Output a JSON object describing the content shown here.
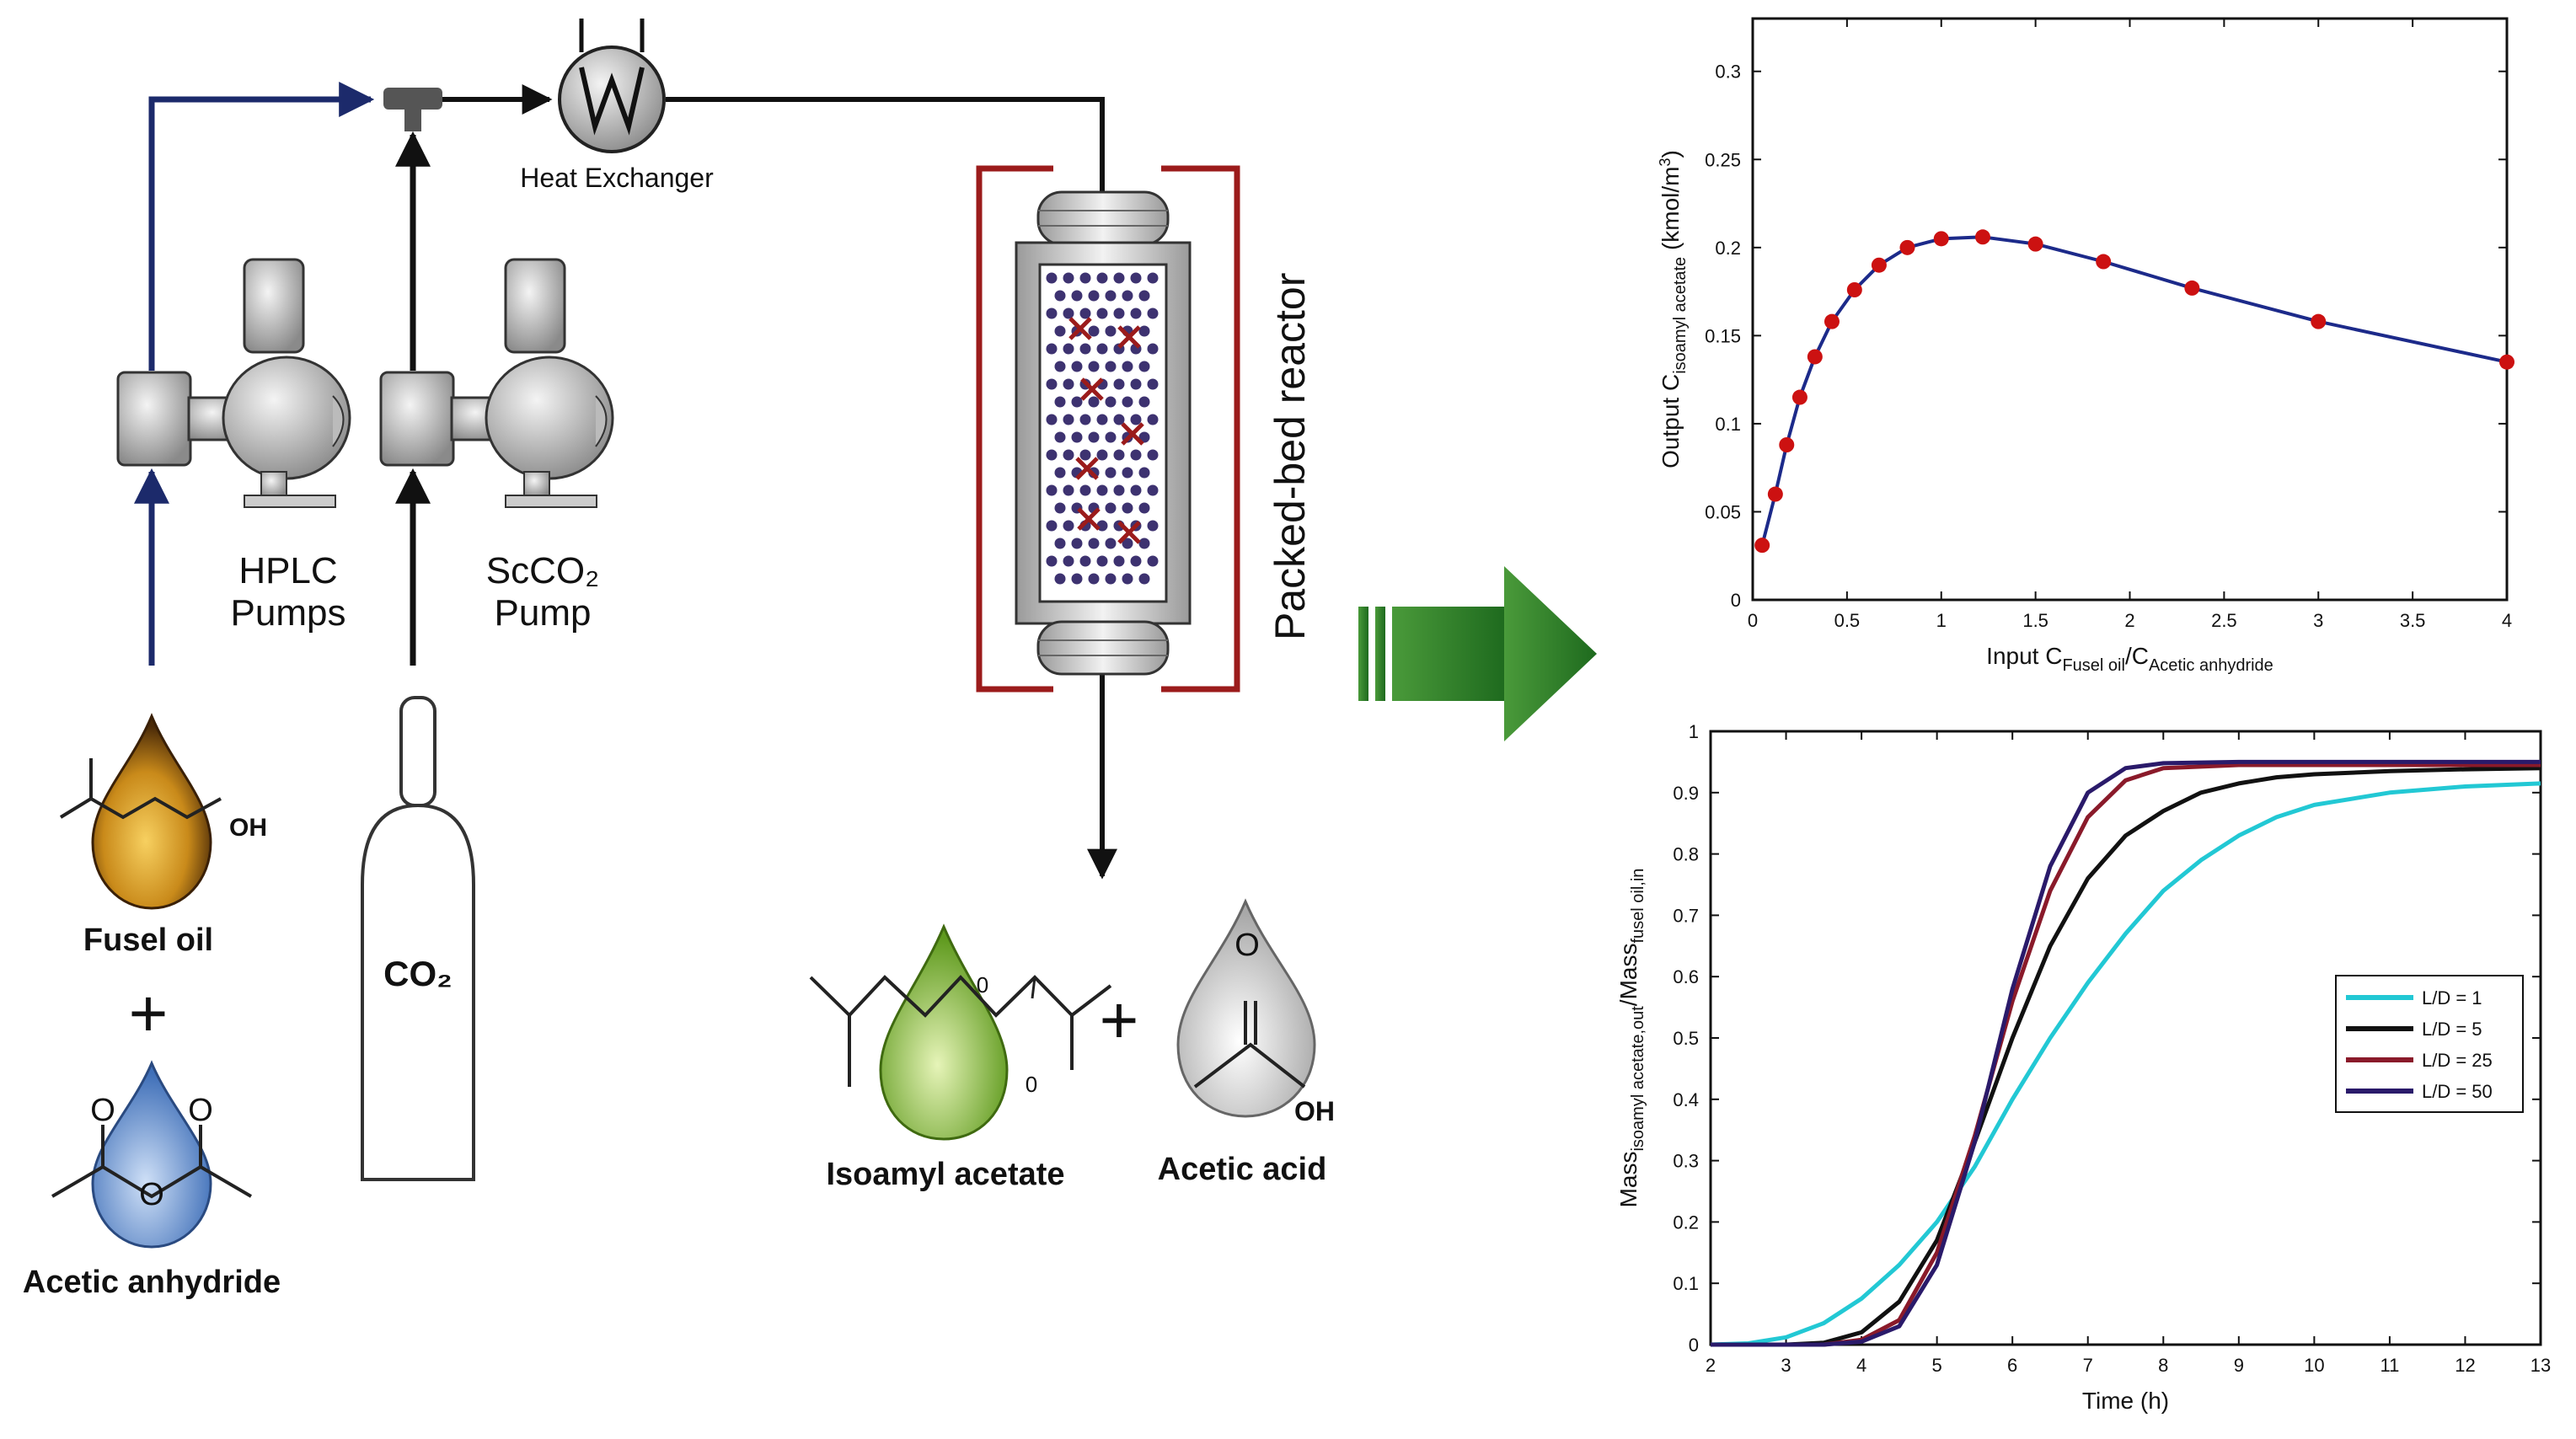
{
  "diagram": {
    "labels": {
      "heat_exchanger": "Heat Exchanger",
      "hplc_line1": "HPLC",
      "hplc_line2": "Pumps",
      "scco2_line1": "ScCO₂",
      "scco2_line2": "Pump",
      "reactor": "Packed-bed reactor",
      "fusel_oil": "Fusel oil",
      "acetic_anhydride": "Acetic anhydride",
      "co2": "CO₂",
      "isoamyl_acetate": "Isoamyl acetate",
      "acetic_acid": "Acetic acid",
      "plus": "+",
      "oh": "OH",
      "o": "O",
      "o_small": "0"
    },
    "colors": {
      "feed_line": "#1c2a6b",
      "line": "#111111",
      "reactor_bracket": "#9b1b1b",
      "bead": "#3d3270",
      "catalyst_cross": "#9b1b1b",
      "arrow": "#2e7d2e",
      "fusel_drop": "#c98a1a",
      "anhydride_drop": "#5a86c8",
      "isoamyl_drop": "#8fbf3a",
      "acid_drop": "#d6d6d6"
    }
  },
  "chart_data": [
    {
      "type": "line",
      "title": "",
      "xlabel_main": "Input C",
      "xlabel_sub1": "Fusel oil",
      "xlabel_sep": "/C",
      "xlabel_sub2": "Acetic anhydride",
      "ylabel_main": "Output C",
      "ylabel_sub": "isoamyl acetate",
      "ylabel_unit": " (kmol/m",
      "ylabel_sup": "3",
      "ylabel_close": ")",
      "xlim": [
        0,
        4
      ],
      "ylim": [
        0,
        0.33
      ],
      "xticks": [
        0,
        0.5,
        1,
        1.5,
        2,
        2.5,
        3,
        3.5,
        4
      ],
      "xtick_labels": [
        "0",
        "0.5",
        "1",
        "1.5",
        "2",
        "2.5",
        "3",
        "3.5",
        "4"
      ],
      "yticks": [
        0,
        0.05,
        0.1,
        0.15,
        0.2,
        0.25,
        0.3
      ],
      "ytick_labels": [
        "0",
        "0.05",
        "0.1",
        "0.15",
        "0.2",
        "0.25",
        "0.3"
      ],
      "series": [
        {
          "color": "#1c2a8a",
          "marker_color": "#cc1111",
          "x": [
            0.05,
            0.12,
            0.18,
            0.25,
            0.33,
            0.42,
            0.54,
            0.67,
            0.82,
            1.0,
            1.22,
            1.5,
            1.86,
            2.33,
            3.0,
            4.0
          ],
          "y": [
            0.031,
            0.06,
            0.088,
            0.115,
            0.138,
            0.158,
            0.176,
            0.19,
            0.2,
            0.205,
            0.206,
            0.202,
            0.192,
            0.177,
            0.158,
            0.135
          ]
        }
      ]
    },
    {
      "type": "line",
      "title": "",
      "xlabel": "Time (h)",
      "ylabel_a": "Mass",
      "ylabel_a_sub": "isoamyl acetate,out",
      "ylabel_sep": "/Mass",
      "ylabel_b_sub": "fusel oil,in",
      "xlim": [
        2,
        13
      ],
      "ylim": [
        0,
        1
      ],
      "xticks": [
        2,
        3,
        4,
        5,
        6,
        7,
        8,
        9,
        10,
        11,
        12,
        13
      ],
      "xtick_labels": [
        "2",
        "3",
        "4",
        "5",
        "6",
        "7",
        "8",
        "9",
        "10",
        "11",
        "12",
        "13"
      ],
      "yticks": [
        0,
        0.1,
        0.2,
        0.3,
        0.4,
        0.5,
        0.6,
        0.7,
        0.8,
        0.9,
        1
      ],
      "ytick_labels": [
        "0",
        "0.1",
        "0.2",
        "0.3",
        "0.4",
        "0.5",
        "0.6",
        "0.7",
        "0.8",
        "0.9",
        "1"
      ],
      "legend_position": "center-right",
      "series": [
        {
          "name": "L/D = 1",
          "color": "#22c8d4",
          "x": [
            2,
            2.5,
            3,
            3.5,
            4,
            4.5,
            5,
            5.5,
            6,
            6.5,
            7,
            7.5,
            8,
            8.5,
            9,
            9.5,
            10,
            11,
            12,
            13
          ],
          "y": [
            0.0,
            0.002,
            0.012,
            0.035,
            0.075,
            0.13,
            0.2,
            0.29,
            0.4,
            0.5,
            0.59,
            0.67,
            0.74,
            0.79,
            0.83,
            0.86,
            0.88,
            0.9,
            0.91,
            0.915
          ]
        },
        {
          "name": "L/D = 5",
          "color": "#111111",
          "x": [
            2,
            3,
            3.5,
            4,
            4.5,
            5,
            5.5,
            6,
            6.5,
            7,
            7.5,
            8,
            8.5,
            9,
            9.5,
            10,
            11,
            12,
            13
          ],
          "y": [
            0.0,
            0.0,
            0.003,
            0.02,
            0.07,
            0.17,
            0.33,
            0.5,
            0.65,
            0.76,
            0.83,
            0.87,
            0.9,
            0.915,
            0.925,
            0.93,
            0.935,
            0.938,
            0.94
          ]
        },
        {
          "name": "L/D = 25",
          "color": "#8a1a2a",
          "x": [
            2,
            3.5,
            4,
            4.5,
            5,
            5.5,
            6,
            6.5,
            7,
            7.5,
            8,
            9,
            10,
            11,
            12,
            13
          ],
          "y": [
            0.0,
            0.0,
            0.008,
            0.04,
            0.15,
            0.34,
            0.56,
            0.74,
            0.86,
            0.92,
            0.94,
            0.945,
            0.945,
            0.945,
            0.945,
            0.945
          ]
        },
        {
          "name": "L/D = 50",
          "color": "#2a1a6a",
          "x": [
            2,
            3.5,
            4,
            4.5,
            5,
            5.5,
            6,
            6.5,
            7,
            7.5,
            8,
            9,
            10,
            11,
            12,
            13
          ],
          "y": [
            0.0,
            0.0,
            0.005,
            0.03,
            0.13,
            0.33,
            0.58,
            0.78,
            0.9,
            0.94,
            0.948,
            0.95,
            0.95,
            0.95,
            0.95,
            0.95
          ]
        }
      ]
    }
  ]
}
